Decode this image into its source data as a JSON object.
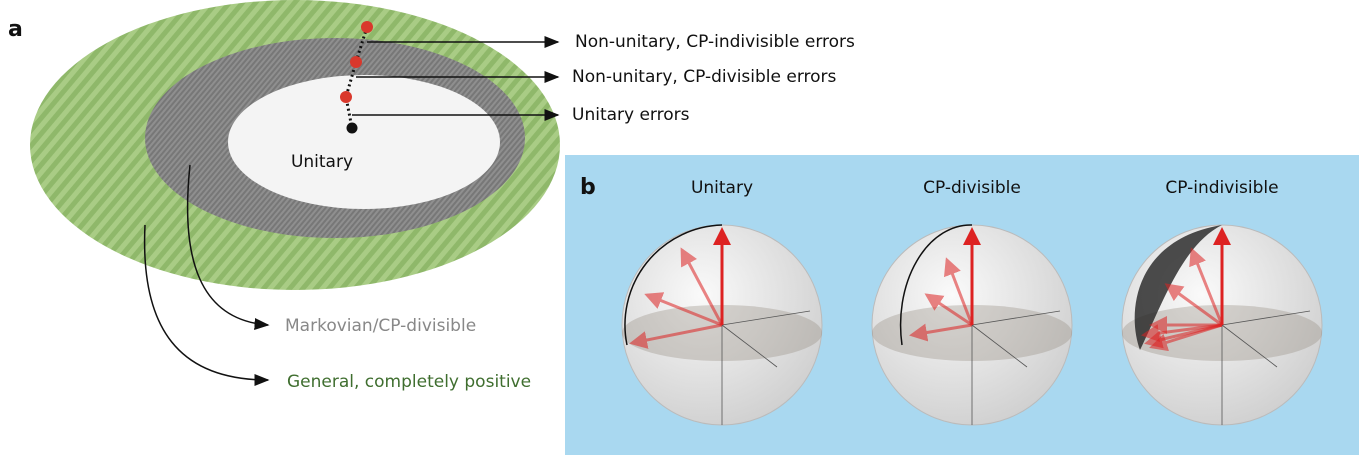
{
  "panel_a": {
    "label": "a",
    "center_label": "Unitary",
    "annotations": [
      "Non-unitary, CP-indivisible errors",
      "Non-unitary, CP-divisible errors",
      "Unitary errors"
    ],
    "regions": [
      "Markovian/CP-divisible",
      "General, completely positive"
    ]
  },
  "panel_b": {
    "label": "b",
    "spheres": [
      "Unitary",
      "CP-divisible",
      "CP-indivisible"
    ]
  }
}
